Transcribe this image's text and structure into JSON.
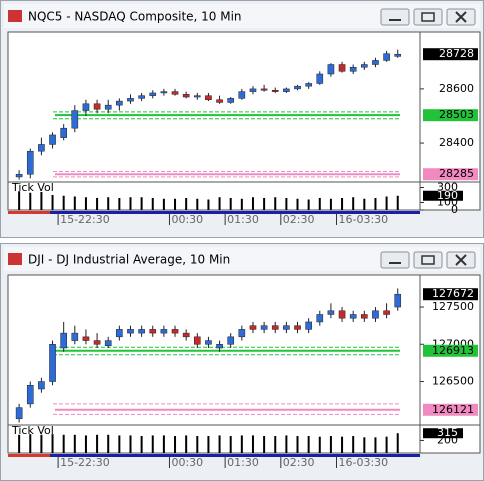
{
  "chart_data": [
    {
      "type": "candlestick",
      "title": "NQC5 - NASDAQ Composite, 10 Min",
      "open": [
        28275,
        28285,
        28370,
        28395,
        28420,
        28455,
        28520,
        28545,
        28525,
        28540,
        28555,
        28565,
        28575,
        28585,
        28590,
        28580,
        28570,
        28575,
        28560,
        28550,
        28565,
        28590,
        28600,
        28595,
        28590,
        28600,
        28610,
        28620,
        28655,
        28690,
        28665,
        28680,
        28690,
        28705,
        28720
      ],
      "high": [
        28300,
        28380,
        28420,
        28440,
        28470,
        28540,
        28560,
        28560,
        28560,
        28565,
        28580,
        28585,
        28595,
        28600,
        28600,
        28590,
        28585,
        28585,
        28575,
        28570,
        28600,
        28610,
        28615,
        28605,
        28605,
        28615,
        28625,
        28665,
        28695,
        28700,
        28690,
        28700,
        28715,
        28740,
        28745
      ],
      "low": [
        28265,
        28270,
        28355,
        28380,
        28410,
        28440,
        28500,
        28510,
        28510,
        28520,
        28545,
        28555,
        28565,
        28575,
        28575,
        28565,
        28560,
        28555,
        28545,
        28545,
        28560,
        28580,
        28590,
        28585,
        28585,
        28595,
        28600,
        28615,
        28645,
        28660,
        28655,
        28670,
        28680,
        28700,
        28715
      ],
      "close": [
        28285,
        28370,
        28395,
        28430,
        28455,
        28520,
        28545,
        28525,
        28540,
        28555,
        28565,
        28575,
        28585,
        28590,
        28580,
        28570,
        28575,
        28560,
        28550,
        28565,
        28590,
        28600,
        28595,
        28590,
        28600,
        28610,
        28620,
        28655,
        28690,
        28665,
        28680,
        28690,
        28705,
        28730,
        28728
      ],
      "colors": {
        "up": "#2f6bd6",
        "down": "#c8282a",
        "wick": "#222"
      },
      "xlim": [
        -1,
        36
      ],
      "xticks": [
        {
          "value": 3.5,
          "label": "15-22:30"
        },
        {
          "value": 13.5,
          "label": "00:30"
        },
        {
          "value": 18.5,
          "label": "01:30"
        },
        {
          "value": 23.5,
          "label": "02:30"
        },
        {
          "value": 28.5,
          "label": "16-03:30"
        }
      ],
      "ylim": [
        28260,
        28810
      ],
      "yticks": [
        28600,
        28400
      ],
      "levels": [
        {
          "value": 28503,
          "color": "#22c33a"
        },
        {
          "value": 28285,
          "color": "#f08ac0"
        }
      ],
      "guides": [
        {
          "value": 28515,
          "color": "#22c33a"
        },
        {
          "value": 28490,
          "color": "#22c33a"
        },
        {
          "value": 28295,
          "color": "#f08ac0"
        },
        {
          "value": 28275,
          "color": "#f08ac0"
        }
      ],
      "volume": {
        "label": "Tick Vol",
        "values": [
          250,
          230,
          240,
          200,
          190,
          180,
          170,
          160,
          170,
          160,
          170,
          170,
          160,
          150,
          150,
          160,
          150,
          140,
          170,
          160,
          150,
          170,
          160,
          170,
          160,
          150,
          140,
          160,
          150,
          160,
          170,
          150,
          160,
          180,
          190
        ],
        "ylim": [
          0,
          360
        ],
        "yticks": [
          300,
          100,
          0
        ]
      }
    },
    {
      "type": "candlestick",
      "title": "DJI - DJ Industrial Average, 10 Min",
      "open": [
        126000,
        126200,
        126400,
        126500,
        126950,
        127050,
        127100,
        127050,
        126980,
        127100,
        127150,
        127150,
        127200,
        127150,
        127200,
        127150,
        127100,
        127000,
        126950,
        127000,
        127100,
        127250,
        127200,
        127250,
        127200,
        127250,
        127200,
        127300,
        127400,
        127450,
        127350,
        127400,
        127350,
        127450,
        127500
      ],
      "high": [
        126200,
        126500,
        126550,
        127050,
        127300,
        127250,
        127200,
        127150,
        127100,
        127250,
        127250,
        127250,
        127250,
        127250,
        127250,
        127200,
        127150,
        127100,
        127050,
        127150,
        127250,
        127300,
        127300,
        127300,
        127300,
        127300,
        127350,
        127450,
        127550,
        127500,
        127450,
        127450,
        127500,
        127550,
        127750
      ],
      "low": [
        125950,
        126150,
        126350,
        126450,
        126900,
        127000,
        127000,
        126950,
        126950,
        127050,
        127100,
        127100,
        127100,
        127100,
        127100,
        127050,
        126950,
        126950,
        126900,
        126950,
        127050,
        127150,
        127150,
        127150,
        127150,
        127150,
        127150,
        127250,
        127350,
        127300,
        127300,
        127300,
        127300,
        127350,
        127450
      ],
      "close": [
        126150,
        126450,
        126500,
        127000,
        127150,
        127150,
        127050,
        127000,
        127050,
        127200,
        127200,
        127200,
        127150,
        127200,
        127150,
        127100,
        127000,
        127050,
        127000,
        127100,
        127200,
        127200,
        127250,
        127200,
        127250,
        127200,
        127300,
        127400,
        127450,
        127350,
        127400,
        127350,
        127450,
        127400,
        127672
      ],
      "colors": {
        "up": "#2f6bd6",
        "down": "#c8282a",
        "wick": "#222"
      },
      "xlim": [
        -1,
        36
      ],
      "xticks": [
        {
          "value": 3.5,
          "label": "15-22:30"
        },
        {
          "value": 13.5,
          "label": "00:30"
        },
        {
          "value": 18.5,
          "label": "01:30"
        },
        {
          "value": 23.5,
          "label": "02:30"
        },
        {
          "value": 28.5,
          "label": "16-03:30"
        }
      ],
      "ylim": [
        125930,
        127930
      ],
      "yticks": [
        127500,
        127000,
        126500
      ],
      "levels": [
        {
          "value": 126913,
          "color": "#22c33a"
        },
        {
          "value": 126121,
          "color": "#f08ac0"
        }
      ],
      "guides": [
        {
          "value": 126960,
          "color": "#22c33a"
        },
        {
          "value": 126860,
          "color": "#22c33a"
        },
        {
          "value": 126200,
          "color": "#f08ac0"
        },
        {
          "value": 126060,
          "color": "#f08ac0"
        }
      ],
      "volume": {
        "label": "Tick Vol",
        "values": [
          290,
          300,
          290,
          300,
          290,
          290,
          280,
          290,
          290,
          280,
          280,
          270,
          280,
          280,
          270,
          280,
          270,
          270,
          280,
          270,
          280,
          280,
          270,
          270,
          280,
          270,
          270,
          260,
          270,
          260,
          270,
          250,
          250,
          260,
          315
        ],
        "ylim": [
          0,
          430
        ],
        "yticks": [
          200
        ]
      }
    }
  ]
}
